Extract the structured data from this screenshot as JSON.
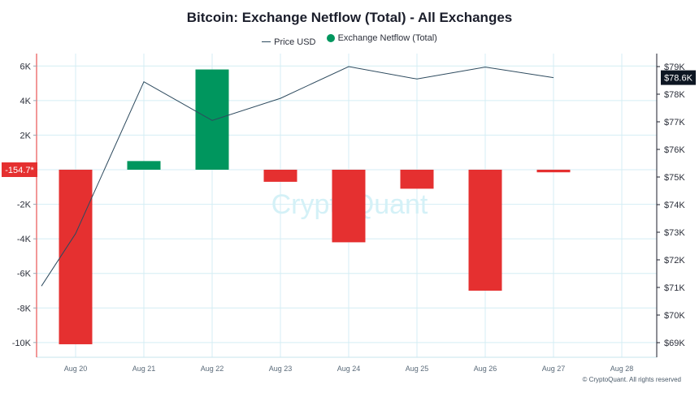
{
  "chart_data": {
    "type": "bar",
    "title": "Bitcoin: Exchange Netflow (Total) - All Exchanges",
    "legend": [
      "Price USD",
      "Exchange Netflow (Total)"
    ],
    "categories": [
      "Aug 20",
      "Aug 21",
      "Aug 22",
      "Aug 23",
      "Aug 24",
      "Aug 25",
      "Aug 26",
      "Aug 27",
      "Aug 28"
    ],
    "series": [
      {
        "name": "Exchange Netflow (Total)",
        "type": "bar",
        "axis": "left",
        "values": [
          -10100,
          500,
          5800,
          -700,
          -4200,
          -1100,
          -7000,
          -150,
          null
        ]
      },
      {
        "name": "Price USD",
        "type": "line",
        "axis": "right",
        "points": [
          {
            "x": "Aug 19",
            "y": 71050
          },
          {
            "x": "Aug 20",
            "y": 72950
          },
          {
            "x": "Aug 21",
            "y": 78450
          },
          {
            "x": "Aug 22",
            "y": 77050
          },
          {
            "x": "Aug 23",
            "y": 77850
          },
          {
            "x": "Aug 24",
            "y": 79000
          },
          {
            "x": "Aug 25",
            "y": 78550
          },
          {
            "x": "Aug 26",
            "y": 78980
          },
          {
            "x": "Aug 27",
            "y": 78600
          }
        ]
      }
    ],
    "left_axis": {
      "ticks": [
        6000,
        4000,
        2000,
        -2000,
        -4000,
        -6000,
        -8000,
        -10000
      ],
      "tick_labels": [
        "6K",
        "4K",
        "2K",
        "-2K",
        "-4K",
        "-6K",
        "-8K",
        "-10K"
      ]
    },
    "right_axis": {
      "ticks": [
        79000,
        78000,
        77000,
        76000,
        75000,
        74000,
        73000,
        72000,
        71000,
        70000,
        69000
      ],
      "tick_labels": [
        "$79K",
        "$78K",
        "$77K",
        "$76K",
        "$75K",
        "$74K",
        "$73K",
        "$72K",
        "$71K",
        "$70K",
        "$69K"
      ]
    },
    "last_value_badges": {
      "left": "-154.7*",
      "right": "$78.6K"
    },
    "watermark": "CryptoQuant",
    "copyright": "© CryptoQuant. All rights reserved",
    "colors": {
      "positive": "#00965e",
      "negative": "#e53030",
      "line": "#2d4a5e",
      "grid": "#d4eef4"
    }
  }
}
